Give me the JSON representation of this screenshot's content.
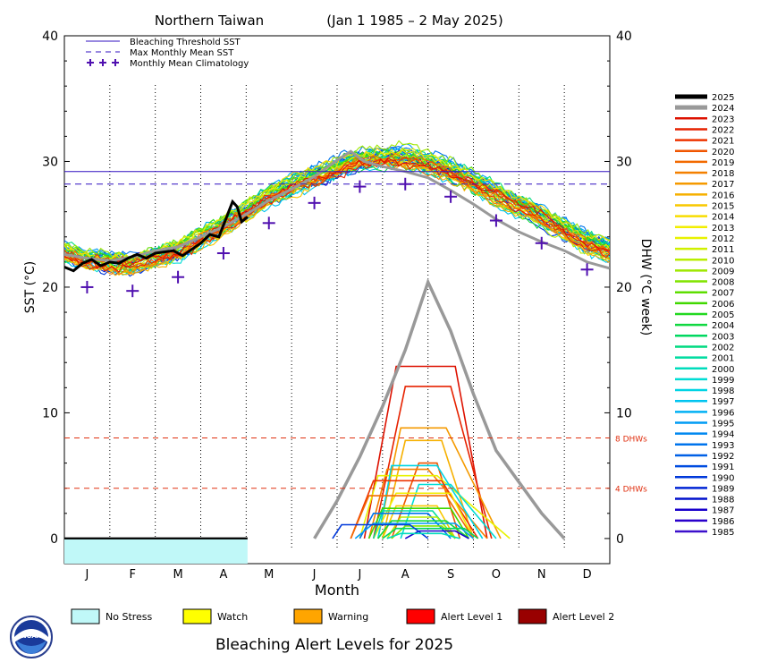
{
  "title_region": "Northern Taiwan",
  "title_period": "(Jan 1 1985 – 2 May 2025)",
  "bottom_title": "Bleaching Alert Levels for 2025",
  "logo_text": "NOAA",
  "chart_data": {
    "type": "line",
    "xlabel": "Month",
    "ylabel_left": "SST (°C)",
    "ylabel_right": "DHW (°C week)",
    "months": [
      "J",
      "F",
      "M",
      "A",
      "M",
      "J",
      "J",
      "A",
      "S",
      "O",
      "N",
      "D"
    ],
    "ylim_sst": [
      -2,
      40
    ],
    "ylim_dhw": [
      -2,
      40
    ],
    "yticks": [
      0,
      10,
      20,
      30,
      40
    ],
    "bleaching_threshold_sst": 29.2,
    "max_monthly_mean_sst": 28.2,
    "monthly_mean_climatology": [
      {
        "month": 0.5,
        "sst": 20.0
      },
      {
        "month": 1.5,
        "sst": 19.7
      },
      {
        "month": 2.5,
        "sst": 20.8
      },
      {
        "month": 3.5,
        "sst": 22.7
      },
      {
        "month": 4.5,
        "sst": 25.1
      },
      {
        "month": 5.5,
        "sst": 26.7
      },
      {
        "month": 6.5,
        "sst": 28.0
      },
      {
        "month": 7.5,
        "sst": 28.2
      },
      {
        "month": 8.5,
        "sst": 27.2
      },
      {
        "month": 9.5,
        "sst": 25.3
      },
      {
        "month": 10.5,
        "sst": 23.5
      },
      {
        "month": 11.5,
        "sst": 21.4
      }
    ],
    "dhw_reference_lines": [
      {
        "value": 8,
        "label": "8 DHWs"
      },
      {
        "value": 4,
        "label": "4 DHWs"
      }
    ],
    "legend_top": [
      {
        "label": "Bleaching Threshold SST",
        "style": "solid"
      },
      {
        "label": "Max Monthly Mean SST",
        "style": "dashed"
      },
      {
        "label": "Monthly Mean Climatology",
        "style": "plus"
      }
    ],
    "year_legend": [
      {
        "year": "2025",
        "color": "#000000"
      },
      {
        "year": "2024",
        "color": "#999999"
      },
      {
        "year": "2023",
        "color": "#dd1100"
      },
      {
        "year": "2022",
        "color": "#e62200"
      },
      {
        "year": "2021",
        "color": "#ee3300"
      },
      {
        "year": "2020",
        "color": "#f05500"
      },
      {
        "year": "2019",
        "color": "#f26a00"
      },
      {
        "year": "2018",
        "color": "#f48000"
      },
      {
        "year": "2017",
        "color": "#f59a00"
      },
      {
        "year": "2016",
        "color": "#f6b000"
      },
      {
        "year": "2015",
        "color": "#f8c800"
      },
      {
        "year": "2014",
        "color": "#f8dd00"
      },
      {
        "year": "2013",
        "color": "#f2ee00"
      },
      {
        "year": "2012",
        "color": "#e8f200"
      },
      {
        "year": "2011",
        "color": "#d0f000"
      },
      {
        "year": "2010",
        "color": "#b8ee00"
      },
      {
        "year": "2009",
        "color": "#9ee800"
      },
      {
        "year": "2008",
        "color": "#80e400"
      },
      {
        "year": "2007",
        "color": "#5ede00"
      },
      {
        "year": "2006",
        "color": "#40d800"
      },
      {
        "year": "2005",
        "color": "#22d820"
      },
      {
        "year": "2004",
        "color": "#10d840"
      },
      {
        "year": "2003",
        "color": "#00d860"
      },
      {
        "year": "2002",
        "color": "#00da80"
      },
      {
        "year": "2001",
        "color": "#00dca0"
      },
      {
        "year": "2000",
        "color": "#00dcbc"
      },
      {
        "year": "1999",
        "color": "#00dcd4"
      },
      {
        "year": "1998",
        "color": "#00d4e4"
      },
      {
        "year": "1997",
        "color": "#00c4f0"
      },
      {
        "year": "1996",
        "color": "#00b0f4"
      },
      {
        "year": "1995",
        "color": "#009cf4"
      },
      {
        "year": "1994",
        "color": "#0088f0"
      },
      {
        "year": "1993",
        "color": "#0074ec"
      },
      {
        "year": "1992",
        "color": "#0060e6"
      },
      {
        "year": "1991",
        "color": "#004ce0"
      },
      {
        "year": "1990",
        "color": "#0038da"
      },
      {
        "year": "1989",
        "color": "#0024d4"
      },
      {
        "year": "1988",
        "color": "#0010cc"
      },
      {
        "year": "1987",
        "color": "#1800cc"
      },
      {
        "year": "1986",
        "color": "#2a00cc"
      },
      {
        "year": "1985",
        "color": "#3c10cc"
      }
    ],
    "alert_levels": [
      {
        "label": "No Stress",
        "color": "#c0f8f8"
      },
      {
        "label": "Watch",
        "color": "#ffff00"
      },
      {
        "label": "Warning",
        "color": "#ffa500"
      },
      {
        "label": "Alert Level 1",
        "color": "#ff0000"
      },
      {
        "label": "Alert Level 2",
        "color": "#990000"
      }
    ],
    "alert_strip_2025": [
      {
        "level": "No Stress",
        "start_month": 0.0,
        "end_month": 4.03
      }
    ],
    "sst_2025": [
      {
        "month": 0.0,
        "sst": 21.6
      },
      {
        "month": 0.2,
        "sst": 21.3
      },
      {
        "month": 0.4,
        "sst": 21.9
      },
      {
        "month": 0.6,
        "sst": 22.2
      },
      {
        "month": 0.8,
        "sst": 21.7
      },
      {
        "month": 1.0,
        "sst": 22.0
      },
      {
        "month": 1.2,
        "sst": 21.9
      },
      {
        "month": 1.4,
        "sst": 22.3
      },
      {
        "month": 1.6,
        "sst": 22.6
      },
      {
        "month": 1.8,
        "sst": 22.3
      },
      {
        "month": 2.0,
        "sst": 22.7
      },
      {
        "month": 2.2,
        "sst": 22.8
      },
      {
        "month": 2.4,
        "sst": 22.9
      },
      {
        "month": 2.6,
        "sst": 22.5
      },
      {
        "month": 2.8,
        "sst": 23.0
      },
      {
        "month": 3.0,
        "sst": 23.5
      },
      {
        "month": 3.2,
        "sst": 24.2
      },
      {
        "month": 3.4,
        "sst": 24.0
      },
      {
        "month": 3.55,
        "sst": 25.4
      },
      {
        "month": 3.7,
        "sst": 26.8
      },
      {
        "month": 3.8,
        "sst": 26.4
      },
      {
        "month": 3.9,
        "sst": 25.2
      },
      {
        "month": 4.03,
        "sst": 25.6
      }
    ],
    "sst_2024": [
      {
        "month": 0.0,
        "sst": 22.6
      },
      {
        "month": 0.5,
        "sst": 22.3
      },
      {
        "month": 1.0,
        "sst": 22.1
      },
      {
        "month": 1.5,
        "sst": 22.4
      },
      {
        "month": 2.0,
        "sst": 22.9
      },
      {
        "month": 2.5,
        "sst": 23.2
      },
      {
        "month": 3.0,
        "sst": 24.0
      },
      {
        "month": 3.5,
        "sst": 24.8
      },
      {
        "month": 4.0,
        "sst": 25.8
      },
      {
        "month": 4.5,
        "sst": 26.9
      },
      {
        "month": 5.0,
        "sst": 27.8
      },
      {
        "month": 5.5,
        "sst": 28.8
      },
      {
        "month": 6.0,
        "sst": 30.1
      },
      {
        "month": 6.3,
        "sst": 30.8
      },
      {
        "month": 6.6,
        "sst": 30.0
      },
      {
        "month": 7.0,
        "sst": 29.6
      },
      {
        "month": 7.5,
        "sst": 29.2
      },
      {
        "month": 8.0,
        "sst": 28.7
      },
      {
        "month": 8.5,
        "sst": 27.7
      },
      {
        "month": 9.0,
        "sst": 26.6
      },
      {
        "month": 9.5,
        "sst": 25.4
      },
      {
        "month": 10.0,
        "sst": 24.4
      },
      {
        "month": 10.5,
        "sst": 23.6
      },
      {
        "month": 11.0,
        "sst": 22.9
      },
      {
        "month": 11.5,
        "sst": 22.0
      },
      {
        "month": 12.0,
        "sst": 21.5
      }
    ],
    "dhw_2024": [
      {
        "month": 5.5,
        "dhw": 0.0
      },
      {
        "month": 6.0,
        "dhw": 3.0
      },
      {
        "month": 6.5,
        "dhw": 6.5
      },
      {
        "month": 7.0,
        "dhw": 10.5
      },
      {
        "month": 7.5,
        "dhw": 15.0
      },
      {
        "month": 8.0,
        "dhw": 20.4
      },
      {
        "month": 8.5,
        "dhw": 16.5
      },
      {
        "month": 9.0,
        "dhw": 11.5
      },
      {
        "month": 9.5,
        "dhw": 7.0
      },
      {
        "month": 10.0,
        "dhw": 4.5
      },
      {
        "month": 10.5,
        "dhw": 2.0
      },
      {
        "month": 11.0,
        "dhw": 0.0
      }
    ],
    "dhw_other_years": [
      {
        "year": "2023",
        "rise": [
          6.6,
          7.3
        ],
        "fall": [
          8.6,
          9.3
        ],
        "peak": 13.7
      },
      {
        "year": "2022",
        "rise": [
          6.8,
          7.5
        ],
        "fall": [
          8.5,
          9.4
        ],
        "peak": 12.1
      },
      {
        "year": "2017",
        "rise": [
          6.9,
          7.4
        ],
        "fall": [
          8.4,
          9.6
        ],
        "peak": 8.8
      },
      {
        "year": "2016",
        "rise": [
          7.0,
          7.5
        ],
        "fall": [
          8.3,
          9.0
        ],
        "peak": 7.8
      },
      {
        "year": "2020",
        "rise": [
          7.2,
          7.8
        ],
        "fall": [
          8.2,
          8.7
        ],
        "peak": 6.0
      },
      {
        "year": "2018",
        "rise": [
          6.7,
          7.1
        ],
        "fall": [
          8.0,
          9.3
        ],
        "peak": 5.5
      },
      {
        "year": "2012",
        "rise": [
          6.5,
          6.9
        ],
        "fall": [
          8.2,
          9.8
        ],
        "peak": 5.0
      },
      {
        "year": "1998",
        "rise": [
          6.9,
          7.2
        ],
        "fall": [
          8.2,
          9.2
        ],
        "peak": 5.8
      },
      {
        "year": "1999",
        "rise": [
          7.4,
          7.8
        ],
        "fall": [
          8.5,
          9.5
        ],
        "peak": 4.3
      },
      {
        "year": "2021",
        "rise": [
          6.3,
          6.8
        ],
        "fall": [
          8.3,
          9.1
        ],
        "peak": 4.6
      },
      {
        "year": "2013",
        "rise": [
          6.8,
          7.3
        ],
        "fall": [
          8.5,
          9.0
        ],
        "peak": 3.6
      },
      {
        "year": "2019",
        "rise": [
          6.3,
          6.7
        ],
        "fall": [
          8.4,
          9.0
        ],
        "peak": 3.4
      },
      {
        "year": "2015",
        "rise": [
          7.0,
          7.3
        ],
        "fall": [
          8.2,
          8.6
        ],
        "peak": 2.6
      },
      {
        "year": "2006",
        "rise": [
          6.7,
          7.0
        ],
        "fall": [
          8.5,
          8.9
        ],
        "peak": 2.4
      },
      {
        "year": "2001",
        "rise": [
          6.8,
          7.0
        ],
        "fall": [
          8.1,
          8.6
        ],
        "peak": 2.2
      },
      {
        "year": "1993",
        "rise": [
          6.5,
          6.8
        ],
        "fall": [
          8.0,
          8.5
        ],
        "peak": 2.0
      },
      {
        "year": "2010",
        "rise": [
          7.1,
          7.4
        ],
        "fall": [
          8.2,
          8.6
        ],
        "peak": 1.7
      },
      {
        "year": "2004",
        "rise": [
          6.9,
          7.2
        ],
        "fall": [
          8.4,
          8.9
        ],
        "peak": 1.4
      },
      {
        "year": "1995",
        "rise": [
          6.4,
          6.8
        ],
        "fall": [
          8.6,
          9.0
        ],
        "peak": 1.2
      },
      {
        "year": "2008",
        "rise": [
          7.2,
          7.5
        ],
        "fall": [
          8.3,
          8.6
        ],
        "peak": 1.0
      },
      {
        "year": "2003",
        "rise": [
          7.0,
          7.3
        ],
        "fall": [
          8.8,
          9.1
        ],
        "peak": 0.8
      },
      {
        "year": "1987",
        "rise": [
          7.5,
          7.8
        ],
        "fall": [
          8.6,
          8.9
        ],
        "peak": 0.6
      },
      {
        "year": "1990",
        "rise": [
          5.9,
          6.1
        ],
        "fall": [
          7.6,
          8.0
        ],
        "peak": 1.1
      },
      {
        "year": "2000",
        "rise": [
          7.1,
          7.4
        ],
        "fall": [
          8.3,
          8.7
        ],
        "peak": 0.4
      }
    ]
  }
}
